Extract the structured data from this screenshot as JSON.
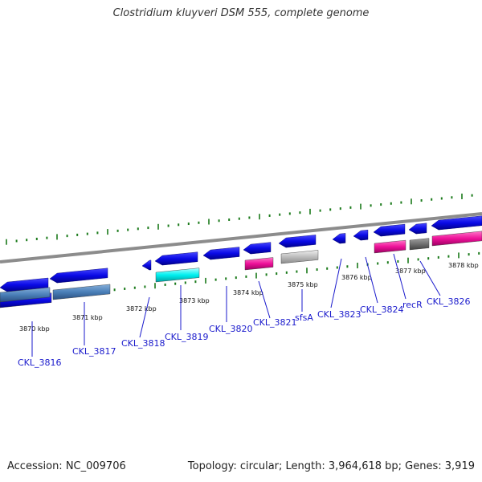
{
  "title": "Clostridium kluyveri DSM 555, complete genome",
  "footer": {
    "accession": "Accession: NC_009706",
    "summary": "Topology: circular; Length: 3,964,618 bp; Genes: 3,919"
  },
  "colors": {
    "cds_blue": "#0a0ae6",
    "steelblue": "#4a7fb8",
    "cyan": "#00f0f0",
    "magenta": "#ee1199",
    "lightgray": "#bdbdbd",
    "darkgray": "#707070",
    "backbone": "#8c8c8c",
    "ticks": "#1a7a1a",
    "label": "#1a1acc"
  },
  "scale_labels": [
    "3870 kbp",
    "3871 kbp",
    "3872 kbp",
    "3873 kbp",
    "3874 kbp",
    "3875 kbp",
    "3876 kbp",
    "3877 kbp",
    "3878 kbp"
  ],
  "genes": [
    {
      "name": "CKL_3816",
      "strand": "reverse",
      "color": "cds_blue"
    },
    {
      "name": "CKL_3817",
      "strand": "reverse",
      "color": "cds_blue"
    },
    {
      "name": "CKL_3818",
      "strand": "reverse",
      "color": "cds_blue"
    },
    {
      "name": "CKL_3819",
      "strand": "reverse",
      "color": "cds_blue"
    },
    {
      "name": "CKL_3820",
      "strand": "reverse",
      "color": "cds_blue"
    },
    {
      "name": "CKL_3821",
      "strand": "reverse",
      "color": "cds_blue"
    },
    {
      "name": "sfsA",
      "strand": "reverse",
      "color": "cds_blue"
    },
    {
      "name": "CKL_3823",
      "strand": "reverse",
      "color": "cds_blue"
    },
    {
      "name": "CKL_3824",
      "strand": "reverse",
      "color": "cds_blue"
    },
    {
      "name": "recR",
      "strand": "reverse",
      "color": "cds_blue"
    },
    {
      "name": "CKL_3826",
      "strand": "reverse",
      "color": "cds_blue"
    }
  ]
}
